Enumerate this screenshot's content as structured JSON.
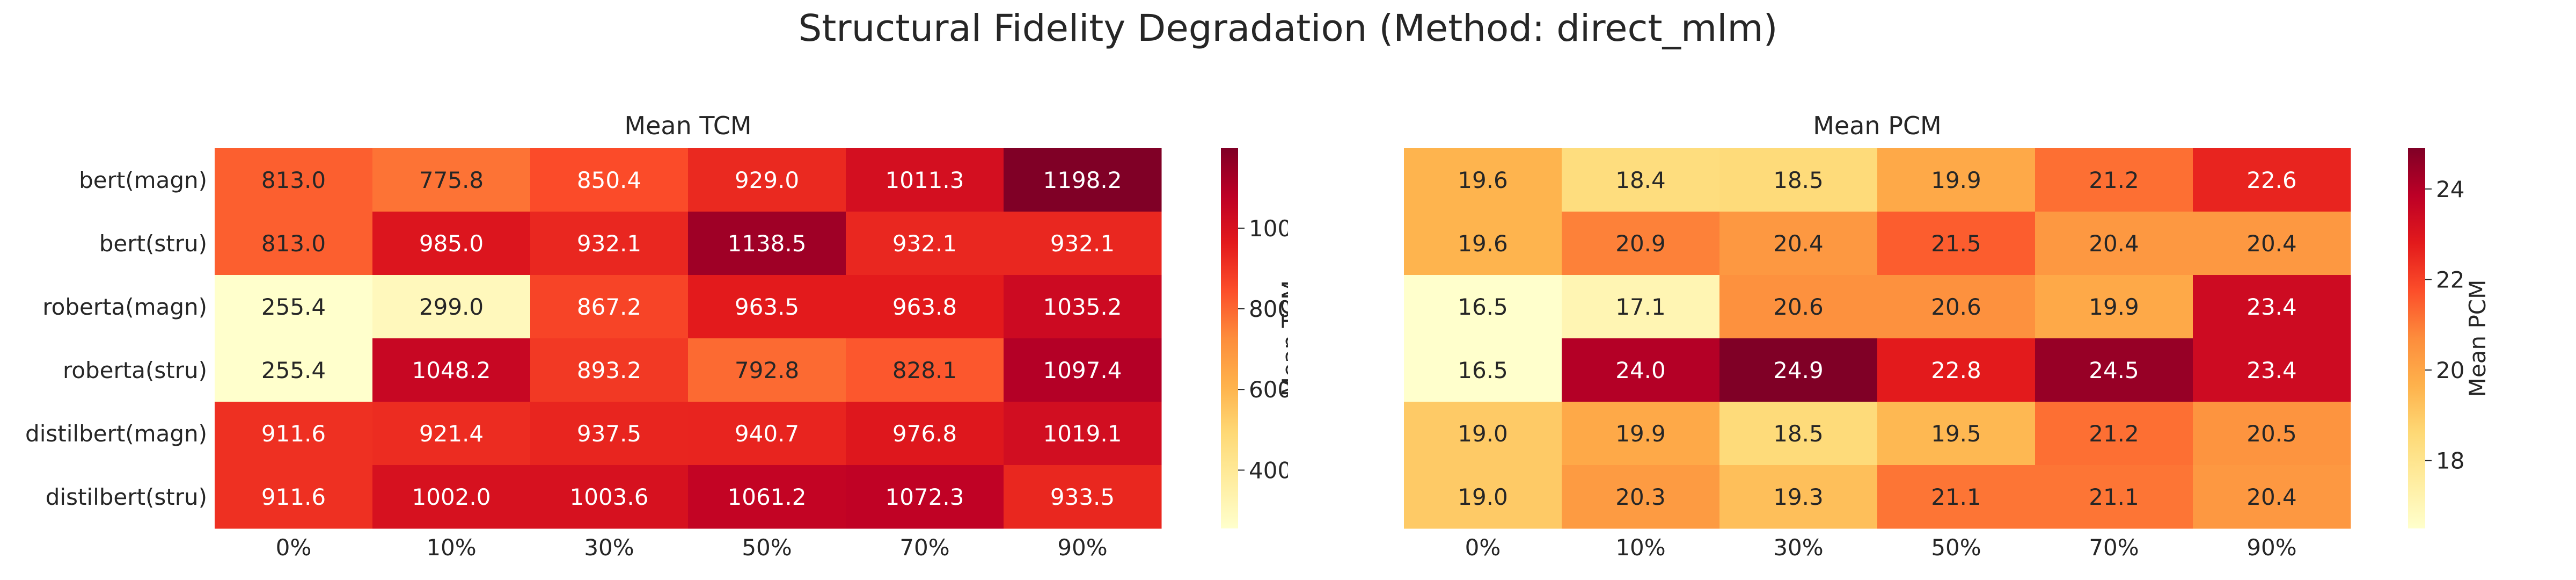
{
  "title": "Structural Fidelity Degradation (Method: direct_mlm)",
  "chart_data": [
    {
      "type": "heatmap",
      "title": "Mean TCM",
      "rows": [
        "bert(magn)",
        "bert(stru)",
        "roberta(magn)",
        "roberta(stru)",
        "distilbert(magn)",
        "distilbert(stru)"
      ],
      "columns": [
        "0%",
        "10%",
        "30%",
        "50%",
        "70%",
        "90%"
      ],
      "values": [
        [
          813.0,
          775.8,
          850.4,
          929.0,
          1011.3,
          1198.2
        ],
        [
          813.0,
          985.0,
          932.1,
          1138.5,
          932.1,
          932.1
        ],
        [
          255.4,
          299.0,
          867.2,
          963.5,
          963.8,
          1035.2
        ],
        [
          255.4,
          1048.2,
          893.2,
          792.8,
          828.1,
          1097.4
        ],
        [
          911.6,
          921.4,
          937.5,
          940.7,
          976.8,
          1019.1
        ],
        [
          911.6,
          1002.0,
          1003.6,
          1061.2,
          1072.3,
          933.5
        ]
      ],
      "colorbar": {
        "label": "Mean TCM",
        "ticks": [
          400,
          600,
          800,
          1000
        ],
        "range": [
          255.4,
          1198.2
        ]
      },
      "colormap": "YlOrRd"
    },
    {
      "type": "heatmap",
      "title": "Mean PCM",
      "rows": [
        "bert(magn)",
        "bert(stru)",
        "roberta(magn)",
        "roberta(stru)",
        "distilbert(magn)",
        "distilbert(stru)"
      ],
      "columns": [
        "0%",
        "10%",
        "30%",
        "50%",
        "70%",
        "90%"
      ],
      "values": [
        [
          19.6,
          18.4,
          18.5,
          19.9,
          21.2,
          22.6
        ],
        [
          19.6,
          20.9,
          20.4,
          21.5,
          20.4,
          20.4
        ],
        [
          16.5,
          17.1,
          20.6,
          20.6,
          19.9,
          23.4
        ],
        [
          16.5,
          24.0,
          24.9,
          22.8,
          24.5,
          23.4
        ],
        [
          19.0,
          19.9,
          18.5,
          19.5,
          21.2,
          20.5
        ],
        [
          19.0,
          20.3,
          19.3,
          21.1,
          21.1,
          20.4
        ]
      ],
      "colorbar": {
        "label": "Mean PCM",
        "ticks": [
          18,
          20,
          22,
          24
        ],
        "range": [
          16.5,
          24.9
        ]
      },
      "colormap": "YlOrRd"
    }
  ]
}
